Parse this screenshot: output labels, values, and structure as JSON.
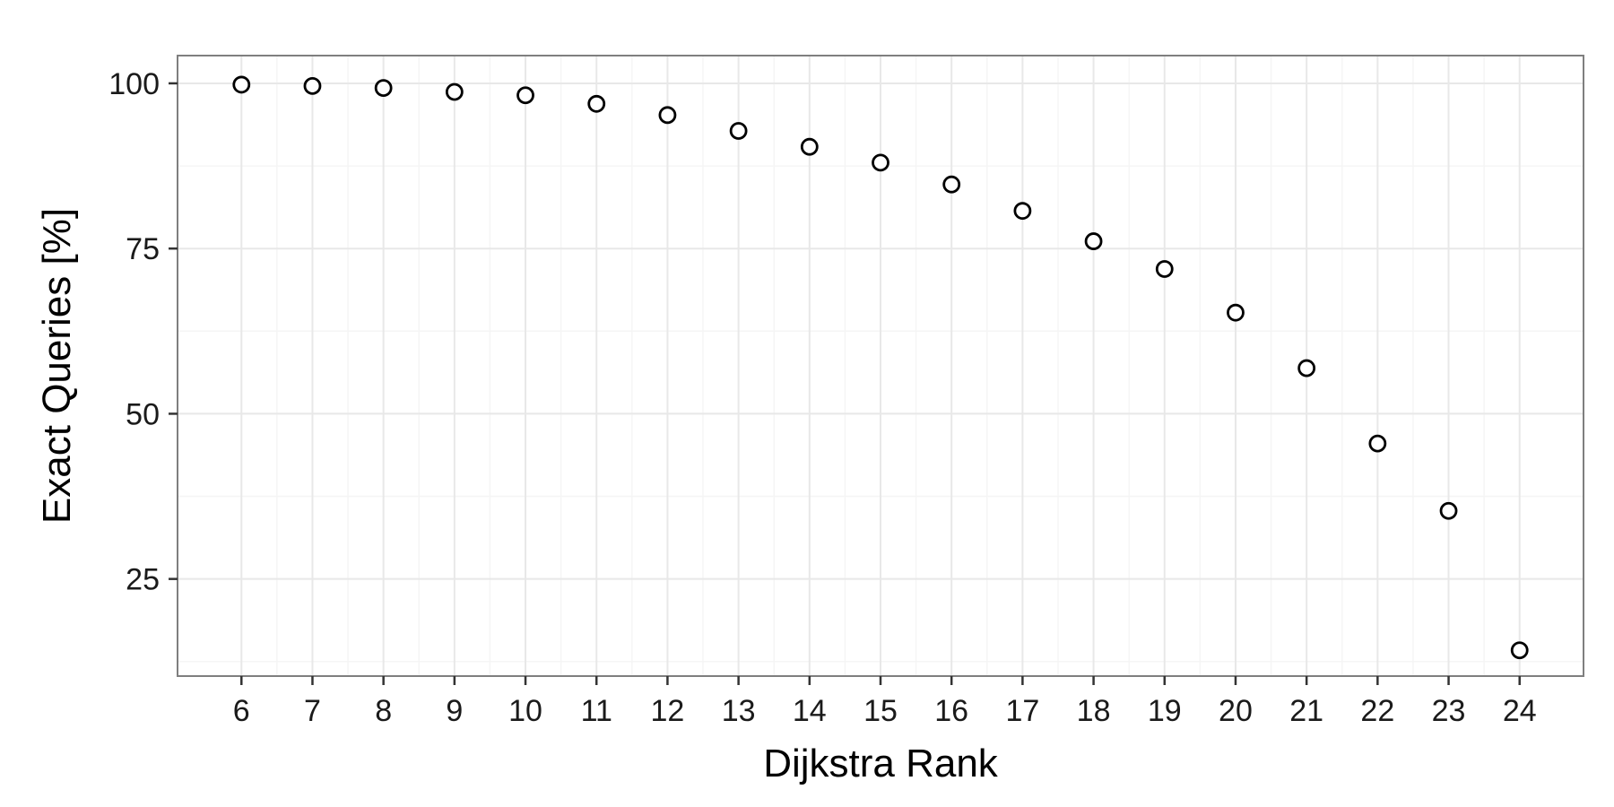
{
  "chart_data": {
    "type": "scatter",
    "title": "",
    "xlabel": "Dijkstra Rank",
    "ylabel": "Exact Queries [%]",
    "x": [
      6,
      7,
      8,
      9,
      10,
      11,
      12,
      13,
      14,
      15,
      16,
      17,
      18,
      19,
      20,
      21,
      22,
      23,
      24
    ],
    "y": [
      99.8,
      99.6,
      99.3,
      98.7,
      98.2,
      96.9,
      95.2,
      92.8,
      90.4,
      88.0,
      84.7,
      80.7,
      76.1,
      71.9,
      65.3,
      56.9,
      45.5,
      35.3,
      14.2
    ],
    "xlim": [
      5.1,
      24.9
    ],
    "ylim": [
      10.3,
      104.2
    ],
    "xticks": [
      "6",
      "7",
      "8",
      "9",
      "10",
      "11",
      "12",
      "13",
      "14",
      "15",
      "16",
      "17",
      "18",
      "19",
      "20",
      "21",
      "22",
      "23",
      "24"
    ],
    "yticks": [
      25,
      50,
      75,
      100
    ],
    "grid": true,
    "marker": "open-circle",
    "colors": {
      "panel_background": "#ffffff",
      "panel_border": "#7f7f7f",
      "grid_major": "#e8e8e8",
      "grid_minor": "#f5f5f5",
      "marker_stroke": "#000000"
    }
  }
}
